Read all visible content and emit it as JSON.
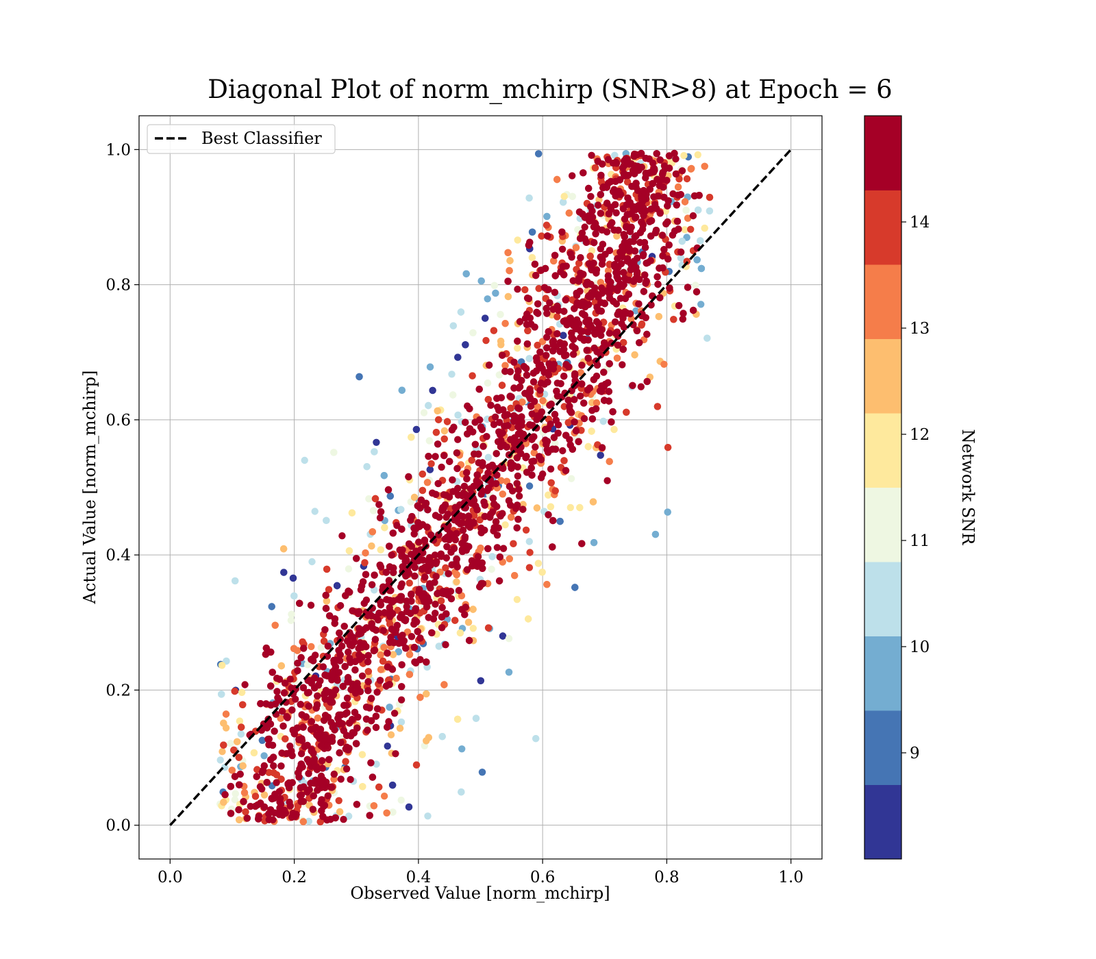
{
  "chart_data": {
    "type": "scatter",
    "title": "Diagonal Plot of norm_mchirp (SNR>8) at Epoch = 6",
    "xlabel": "Observed Value [norm_mchirp]",
    "ylabel": "Actual Value [norm_mchirp]",
    "xlim": [
      -0.05,
      1.05
    ],
    "ylim": [
      -0.05,
      1.05
    ],
    "xticks": [
      "0.0",
      "0.2",
      "0.4",
      "0.6",
      "0.8",
      "1.0"
    ],
    "yticks": [
      "0.0",
      "0.2",
      "0.4",
      "0.6",
      "0.8",
      "1.0"
    ],
    "grid": true,
    "legend": {
      "placement": "top-left",
      "entries": [
        {
          "label": "Best Classifier",
          "style": "dashed",
          "color": "#000000"
        }
      ]
    },
    "reference_line": {
      "name": "Best Classifier",
      "x": [
        0,
        1
      ],
      "y": [
        0,
        1
      ]
    },
    "colorbar": {
      "label": "Network SNR",
      "range": [
        8,
        15
      ],
      "ticks": [
        "9",
        "10",
        "11",
        "12",
        "13",
        "14"
      ],
      "tick_values": [
        9,
        10,
        11,
        12,
        13,
        14
      ],
      "bins": [
        {
          "from": 8.0,
          "to": 8.7,
          "color": "#313695"
        },
        {
          "from": 8.7,
          "to": 9.4,
          "color": "#4575b4"
        },
        {
          "from": 9.4,
          "to": 10.1,
          "color": "#74add1"
        },
        {
          "from": 10.1,
          "to": 10.8,
          "color": "#bde0ea"
        },
        {
          "from": 10.8,
          "to": 11.5,
          "color": "#eef7e2"
        },
        {
          "from": 11.5,
          "to": 12.2,
          "color": "#fee99d"
        },
        {
          "from": 12.2,
          "to": 12.9,
          "color": "#fdbe6f"
        },
        {
          "from": 12.9,
          "to": 13.6,
          "color": "#f57d4a"
        },
        {
          "from": 13.6,
          "to": 14.3,
          "color": "#d73a2b"
        },
        {
          "from": 14.3,
          "to": 15.0,
          "color": "#a50026"
        }
      ]
    },
    "scatter": {
      "approx_points": 5200,
      "distribution": "dense band around y = x shifted so that observed is underestimated at high values and overestimated at low values; low-SNR points spread wider",
      "band_anchors": [
        {
          "y": 0.05,
          "x_center": 0.19,
          "x_halfwidth": 0.09
        },
        {
          "y": 0.2,
          "x_center": 0.26,
          "x_halfwidth": 0.1
        },
        {
          "y": 0.4,
          "x_center": 0.43,
          "x_halfwidth": 0.1
        },
        {
          "y": 0.6,
          "x_center": 0.58,
          "x_halfwidth": 0.1
        },
        {
          "y": 0.8,
          "x_center": 0.7,
          "x_halfwidth": 0.1
        },
        {
          "y": 0.97,
          "x_center": 0.76,
          "x_halfwidth": 0.07
        }
      ]
    }
  }
}
